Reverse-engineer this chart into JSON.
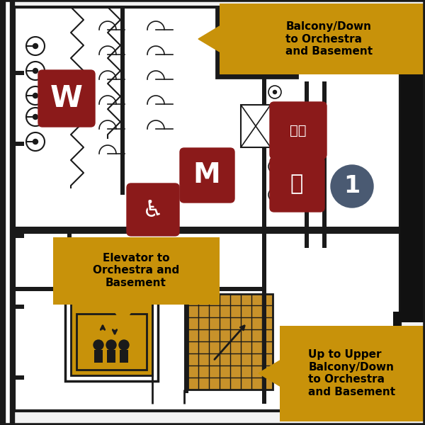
{
  "bg_color": "#f2f2f2",
  "wall_color": "#1a1a1a",
  "maroon": "#8B1A1A",
  "gold": "#C8920A",
  "slate_blue": "#4a5a72",
  "stair_color": "#C8922A",
  "label_top": "Balcony/Down\nto Orchestra\nand Basement",
  "label_elevator": "Elevator to\nOrchestra and\nBasement",
  "label_bottom": "Up to Upper\nBalcony/Down\nto Orchestra\nand Basement"
}
